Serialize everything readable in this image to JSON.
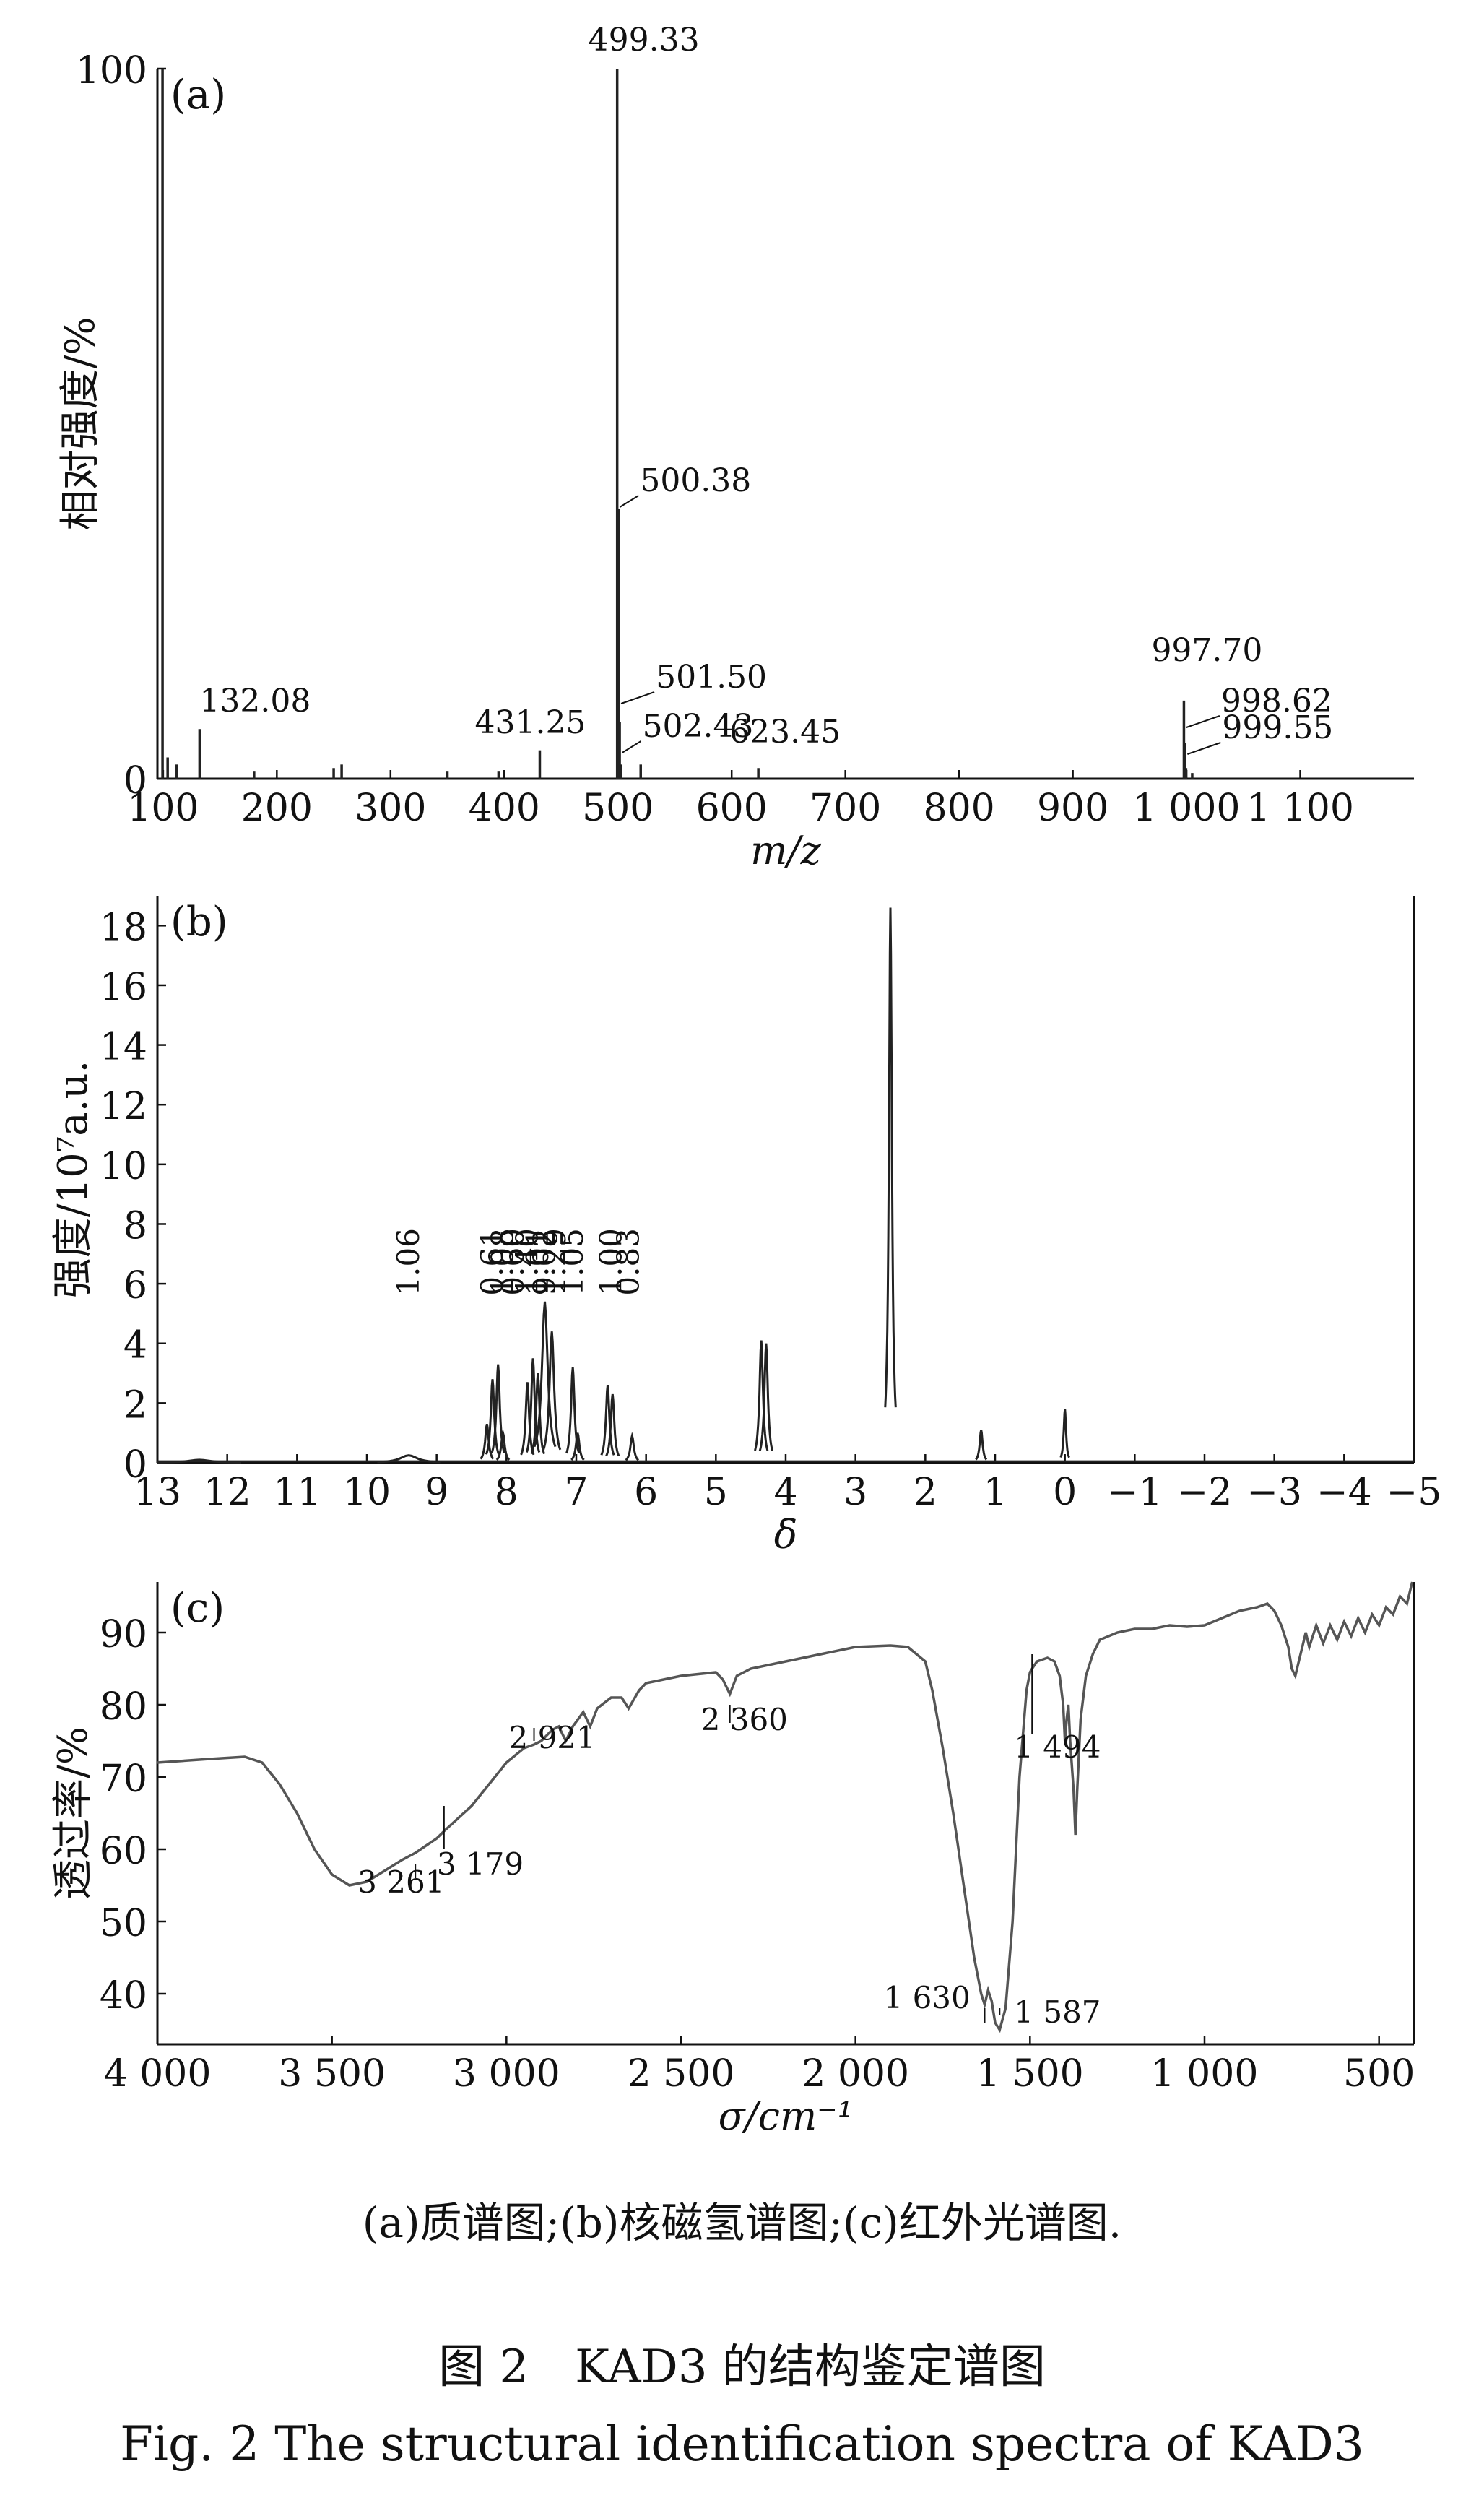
{
  "chart_data": [
    {
      "type": "bar",
      "panel_label": "(a)",
      "xlabel": "m/z",
      "ylabel": "相对强度/%",
      "xlim": [
        95,
        1200
      ],
      "ylim": [
        0,
        100
      ],
      "xticks": [
        {
          "v": 100,
          "t": "100"
        },
        {
          "v": 200,
          "t": "200"
        },
        {
          "v": 300,
          "t": "300"
        },
        {
          "v": 400,
          "t": "400"
        },
        {
          "v": 500,
          "t": "500"
        },
        {
          "v": 600,
          "t": "600"
        },
        {
          "v": 700,
          "t": "700"
        },
        {
          "v": 800,
          "t": "800"
        },
        {
          "v": 900,
          "t": "900"
        },
        {
          "v": 1000,
          "t": "1 000"
        },
        {
          "v": 1100,
          "t": "1 100"
        }
      ],
      "yticks": [
        {
          "v": 0,
          "t": "0"
        },
        {
          "v": 100,
          "t": "100"
        }
      ],
      "peaks": [
        {
          "x": 99.5,
          "y": 100
        },
        {
          "x": 104,
          "y": 3
        },
        {
          "x": 112,
          "y": 2
        },
        {
          "x": 132.08,
          "y": 7
        },
        {
          "x": 180,
          "y": 1
        },
        {
          "x": 250,
          "y": 1.5
        },
        {
          "x": 257,
          "y": 2
        },
        {
          "x": 350,
          "y": 1
        },
        {
          "x": 395,
          "y": 1
        },
        {
          "x": 431.25,
          "y": 4
        },
        {
          "x": 499.33,
          "y": 100
        },
        {
          "x": 500.38,
          "y": 38
        },
        {
          "x": 501.5,
          "y": 8
        },
        {
          "x": 502.43,
          "y": 2
        },
        {
          "x": 520,
          "y": 2
        },
        {
          "x": 623.45,
          "y": 1.5
        },
        {
          "x": 997.7,
          "y": 11
        },
        {
          "x": 998.62,
          "y": 5
        },
        {
          "x": 999.55,
          "y": 1.5
        },
        {
          "x": 1005,
          "y": 0.8
        }
      ],
      "labels": [
        {
          "text": "499.33",
          "x": 499.33
        },
        {
          "text": "500.38",
          "x": 500.38
        },
        {
          "text": "132.08",
          "x": 132.08
        },
        {
          "text": "431.25",
          "x": 431.25
        },
        {
          "text": "501.50",
          "x": 501.5
        },
        {
          "text": "502.43",
          "x": 502.43
        },
        {
          "text": "623.45",
          "x": 623.45
        },
        {
          "text": "997.70",
          "x": 997.7
        },
        {
          "text": "998.62",
          "x": 998.62
        },
        {
          "text": "999.55",
          "x": 999.55
        }
      ]
    },
    {
      "type": "line",
      "panel_label": "(b)",
      "xlabel": "δ",
      "ylabel": "强度/10⁷a.u.",
      "xlim": [
        13,
        -5
      ],
      "ylim": [
        0,
        19
      ],
      "xticks": [
        {
          "v": 13,
          "t": "13"
        },
        {
          "v": 12,
          "t": "12"
        },
        {
          "v": 11,
          "t": "11"
        },
        {
          "v": 10,
          "t": "10"
        },
        {
          "v": 9,
          "t": "9"
        },
        {
          "v": 8,
          "t": "8"
        },
        {
          "v": 7,
          "t": "7"
        },
        {
          "v": 6,
          "t": "6"
        },
        {
          "v": 5,
          "t": "5"
        },
        {
          "v": 4,
          "t": "4"
        },
        {
          "v": 3,
          "t": "3"
        },
        {
          "v": 2,
          "t": "2"
        },
        {
          "v": 1,
          "t": "1"
        },
        {
          "v": 0,
          "t": "0"
        },
        {
          "v": -1,
          "t": "−1"
        },
        {
          "v": -2,
          "t": "−2"
        },
        {
          "v": -3,
          "t": "−3"
        },
        {
          "v": -4,
          "t": "−4"
        },
        {
          "v": -5,
          "t": "−5"
        }
      ],
      "yticks": [
        {
          "v": 0,
          "t": "0"
        },
        {
          "v": 2,
          "t": "2"
        },
        {
          "v": 4,
          "t": "4"
        },
        {
          "v": 6,
          "t": "6"
        },
        {
          "v": 8,
          "t": "8"
        },
        {
          "v": 10,
          "t": "10"
        },
        {
          "v": 12,
          "t": "12"
        },
        {
          "v": 14,
          "t": "14"
        },
        {
          "v": 16,
          "t": "16"
        },
        {
          "v": 18,
          "t": "18"
        }
      ],
      "peaks": [
        {
          "x": 8.28,
          "y": 1.3,
          "w": 0.03
        },
        {
          "x": 8.2,
          "y": 2.8,
          "w": 0.03
        },
        {
          "x": 8.12,
          "y": 3.3,
          "w": 0.03
        },
        {
          "x": 8.05,
          "y": 1.0,
          "w": 0.03
        },
        {
          "x": 7.7,
          "y": 2.7,
          "w": 0.03
        },
        {
          "x": 7.62,
          "y": 3.5,
          "w": 0.03
        },
        {
          "x": 7.55,
          "y": 3.0,
          "w": 0.03
        },
        {
          "x": 7.45,
          "y": 5.4,
          "w": 0.05
        },
        {
          "x": 7.35,
          "y": 4.4,
          "w": 0.04
        },
        {
          "x": 7.05,
          "y": 3.2,
          "w": 0.03
        },
        {
          "x": 6.98,
          "y": 1.0,
          "w": 0.03
        },
        {
          "x": 6.55,
          "y": 2.6,
          "w": 0.03
        },
        {
          "x": 6.48,
          "y": 2.3,
          "w": 0.03
        },
        {
          "x": 6.2,
          "y": 0.9,
          "w": 0.03
        },
        {
          "x": 4.35,
          "y": 4.1,
          "w": 0.03
        },
        {
          "x": 4.28,
          "y": 4.0,
          "w": 0.03
        },
        {
          "x": 2.5,
          "y": 18.6,
          "w": 0.025
        },
        {
          "x": 1.2,
          "y": 1.1,
          "w": 0.025
        },
        {
          "x": 0.0,
          "y": 1.8,
          "w": 0.02
        },
        {
          "x": 9.4,
          "y": 0.25,
          "w": 0.15
        },
        {
          "x": 12.4,
          "y": 0.1,
          "w": 0.2
        }
      ],
      "integrals": [
        {
          "text": "1.06",
          "x": 9.4
        },
        {
          "text": "0.61",
          "x": 8.2
        },
        {
          "text": "1.08",
          "x": 8.05
        },
        {
          "text": "0.60",
          "x": 7.9
        },
        {
          "text": "1.40",
          "x": 7.7
        },
        {
          "text": "1.01",
          "x": 7.55
        },
        {
          "text": "9.02",
          "x": 7.45
        },
        {
          "text": "1.29",
          "x": 7.3
        },
        {
          "text": "1.05",
          "x": 7.05
        },
        {
          "text": "1.00",
          "x": 6.5
        },
        {
          "text": "0.83",
          "x": 6.25
        }
      ]
    },
    {
      "type": "line",
      "panel_label": "(c)",
      "xlabel": "σ/cm⁻¹",
      "ylabel": "透过率/%",
      "xlim": [
        4000,
        400
      ],
      "ylim": [
        33,
        97
      ],
      "xticks": [
        {
          "v": 4000,
          "t": "4 000"
        },
        {
          "v": 3500,
          "t": "3 500"
        },
        {
          "v": 3000,
          "t": "3 000"
        },
        {
          "v": 2500,
          "t": "2 500"
        },
        {
          "v": 2000,
          "t": "2 000"
        },
        {
          "v": 1500,
          "t": "1 500"
        },
        {
          "v": 1000,
          "t": "1 000"
        },
        {
          "v": 500,
          "t": "500"
        }
      ],
      "yticks": [
        {
          "v": 40,
          "t": "40"
        },
        {
          "v": 50,
          "t": "50"
        },
        {
          "v": 60,
          "t": "60"
        },
        {
          "v": 70,
          "t": "70"
        },
        {
          "v": 80,
          "t": "80"
        },
        {
          "v": 90,
          "t": "90"
        }
      ],
      "points": [
        [
          4000,
          72
        ],
        [
          3850,
          72.5
        ],
        [
          3750,
          72.8
        ],
        [
          3700,
          72
        ],
        [
          3650,
          69
        ],
        [
          3600,
          65
        ],
        [
          3550,
          60
        ],
        [
          3500,
          56.5
        ],
        [
          3450,
          55
        ],
        [
          3400,
          55.5
        ],
        [
          3350,
          57
        ],
        [
          3300,
          58.5
        ],
        [
          3261,
          59.5
        ],
        [
          3200,
          61.5
        ],
        [
          3179,
          62.5
        ],
        [
          3100,
          66
        ],
        [
          3050,
          69
        ],
        [
          3000,
          72
        ],
        [
          2950,
          74
        ],
        [
          2921,
          74.5
        ],
        [
          2900,
          75
        ],
        [
          2870,
          76.5
        ],
        [
          2850,
          77
        ],
        [
          2830,
          75
        ],
        [
          2810,
          77
        ],
        [
          2780,
          79
        ],
        [
          2760,
          77
        ],
        [
          2740,
          79.5
        ],
        [
          2700,
          81
        ],
        [
          2670,
          81
        ],
        [
          2650,
          79.5
        ],
        [
          2620,
          82
        ],
        [
          2600,
          83
        ],
        [
          2500,
          84
        ],
        [
          2400,
          84.5
        ],
        [
          2380,
          83.5
        ],
        [
          2360,
          81.5
        ],
        [
          2340,
          84
        ],
        [
          2300,
          85
        ],
        [
          2200,
          86
        ],
        [
          2100,
          87
        ],
        [
          2000,
          88
        ],
        [
          1900,
          88.2
        ],
        [
          1850,
          88
        ],
        [
          1800,
          86
        ],
        [
          1780,
          82
        ],
        [
          1750,
          74
        ],
        [
          1720,
          65
        ],
        [
          1690,
          55
        ],
        [
          1660,
          45
        ],
        [
          1640,
          40
        ],
        [
          1630,
          38.5
        ],
        [
          1620,
          40.5
        ],
        [
          1610,
          39
        ],
        [
          1600,
          36
        ],
        [
          1587,
          35
        ],
        [
          1570,
          38
        ],
        [
          1550,
          50
        ],
        [
          1530,
          70
        ],
        [
          1510,
          82
        ],
        [
          1500,
          84.5
        ],
        [
          1494,
          85
        ],
        [
          1480,
          86
        ],
        [
          1450,
          86.5
        ],
        [
          1430,
          86
        ],
        [
          1415,
          84
        ],
        [
          1405,
          80
        ],
        [
          1400,
          75
        ],
        [
          1395,
          78
        ],
        [
          1390,
          80
        ],
        [
          1385,
          75
        ],
        [
          1375,
          68
        ],
        [
          1370,
          62
        ],
        [
          1365,
          68
        ],
        [
          1355,
          78
        ],
        [
          1340,
          84
        ],
        [
          1320,
          87
        ],
        [
          1300,
          89
        ],
        [
          1250,
          90
        ],
        [
          1200,
          90.5
        ],
        [
          1150,
          90.5
        ],
        [
          1100,
          91
        ],
        [
          1050,
          90.8
        ],
        [
          1000,
          91
        ],
        [
          950,
          92
        ],
        [
          900,
          93
        ],
        [
          850,
          93.5
        ],
        [
          820,
          94
        ],
        [
          800,
          93
        ],
        [
          780,
          91
        ],
        [
          760,
          88
        ],
        [
          750,
          85
        ],
        [
          740,
          84
        ],
        [
          730,
          86
        ],
        [
          710,
          90
        ],
        [
          700,
          88
        ],
        [
          680,
          91
        ],
        [
          660,
          88.5
        ],
        [
          640,
          91
        ],
        [
          620,
          89
        ],
        [
          600,
          91.5
        ],
        [
          580,
          89.5
        ],
        [
          560,
          92
        ],
        [
          540,
          90
        ],
        [
          520,
          92.5
        ],
        [
          500,
          91
        ],
        [
          480,
          93.5
        ],
        [
          460,
          92.5
        ],
        [
          440,
          95
        ],
        [
          420,
          94
        ],
        [
          405,
          97
        ]
      ],
      "labels": [
        {
          "text": "2 921",
          "x": 2921
        },
        {
          "text": "2 360",
          "x": 2360
        },
        {
          "text": "3 261",
          "x": 3261
        },
        {
          "text": "3 179",
          "x": 3179
        },
        {
          "text": "1 494",
          "x": 1494
        },
        {
          "text": "1 630",
          "x": 1630
        },
        {
          "text": "1 587",
          "x": 1587
        }
      ]
    }
  ],
  "captions": {
    "subtitle": "(a)质谱图;(b)核磁氢谱图;(c)红外光谱图.",
    "figure_cn": "图 2　KAD3 的结构鉴定谱图",
    "figure_en": "Fig. 2  The structural identification spectra of KAD3"
  }
}
